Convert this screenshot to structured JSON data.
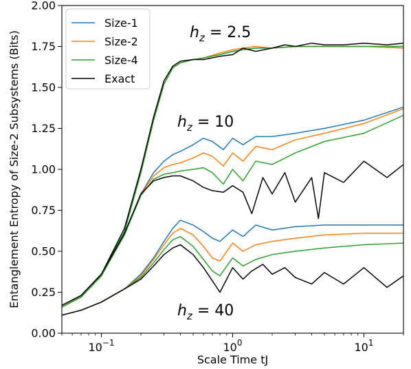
{
  "chart_data": {
    "type": "line",
    "title": "",
    "xlabel": "Scale Time tJ",
    "ylabel": "Entanglement Entropy of Size-2 Subsystems (Bits)",
    "xscale": "log",
    "xlim": [
      0.05,
      20
    ],
    "ylim": [
      0.0,
      2.0
    ],
    "grid": false,
    "legend_position": "top-left",
    "xticks": [
      {
        "value": 0.1,
        "base": "10",
        "exp": "−1"
      },
      {
        "value": 1,
        "base": "10",
        "exp": "0"
      },
      {
        "value": 10,
        "base": "10",
        "exp": "1"
      }
    ],
    "yticks": [
      "0.00",
      "0.25",
      "0.50",
      "0.75",
      "1.00",
      "1.25",
      "1.50",
      "1.75",
      "2.00"
    ],
    "series_styles": [
      {
        "name": "Size-1",
        "color": "#1f77b4"
      },
      {
        "name": "Size-2",
        "color": "#ff7f0e"
      },
      {
        "name": "Size-4",
        "color": "#2ca02c"
      },
      {
        "name": "Exact",
        "color": "#000000"
      }
    ],
    "groups": [
      {
        "annotation": {
          "var": "h",
          "sub": "z",
          "rest": " = 2.5"
        },
        "series": [
          {
            "name": "Size-1",
            "x": [
              0.05,
              0.07,
              0.1,
              0.15,
              0.2,
              0.25,
              0.3,
              0.35,
              0.4,
              0.5,
              0.6,
              0.8,
              1.0,
              1.2,
              1.5,
              2.0,
              3.0,
              5.0,
              10,
              20
            ],
            "y": [
              0.16,
              0.22,
              0.35,
              0.62,
              0.98,
              1.3,
              1.52,
              1.62,
              1.65,
              1.67,
              1.68,
              1.7,
              1.72,
              1.73,
              1.74,
              1.74,
              1.75,
              1.75,
              1.75,
              1.75
            ]
          },
          {
            "name": "Size-2",
            "x": [
              0.05,
              0.07,
              0.1,
              0.15,
              0.2,
              0.25,
              0.3,
              0.35,
              0.4,
              0.5,
              0.6,
              0.8,
              1.0,
              1.2,
              1.5,
              2.0,
              3.0,
              5.0,
              10,
              20
            ],
            "y": [
              0.16,
              0.22,
              0.35,
              0.62,
              0.98,
              1.3,
              1.52,
              1.62,
              1.65,
              1.67,
              1.68,
              1.71,
              1.73,
              1.74,
              1.75,
              1.74,
              1.75,
              1.75,
              1.75,
              1.74
            ]
          },
          {
            "name": "Size-4",
            "x": [
              0.05,
              0.07,
              0.1,
              0.15,
              0.2,
              0.25,
              0.3,
              0.35,
              0.4,
              0.5,
              0.6,
              0.8,
              1.0,
              1.2,
              1.5,
              2.0,
              3.0,
              5.0,
              10,
              20
            ],
            "y": [
              0.16,
              0.22,
              0.35,
              0.62,
              0.98,
              1.3,
              1.52,
              1.62,
              1.65,
              1.67,
              1.68,
              1.7,
              1.72,
              1.73,
              1.74,
              1.74,
              1.75,
              1.75,
              1.75,
              1.75
            ]
          },
          {
            "name": "Exact",
            "x": [
              0.05,
              0.07,
              0.1,
              0.15,
              0.2,
              0.25,
              0.3,
              0.35,
              0.4,
              0.5,
              0.6,
              0.8,
              1.0,
              1.2,
              1.5,
              2.0,
              2.5,
              3.0,
              4.0,
              5.0,
              7.0,
              10,
              15,
              20
            ],
            "y": [
              0.17,
              0.23,
              0.36,
              0.64,
              1.0,
              1.32,
              1.54,
              1.63,
              1.66,
              1.67,
              1.67,
              1.69,
              1.7,
              1.74,
              1.72,
              1.74,
              1.76,
              1.75,
              1.77,
              1.76,
              1.76,
              1.77,
              1.76,
              1.77
            ]
          }
        ]
      },
      {
        "annotation": {
          "var": "h",
          "sub": "z",
          "rest": " = 10"
        },
        "series": [
          {
            "name": "Size-1",
            "x": [
              0.05,
              0.07,
              0.1,
              0.15,
              0.2,
              0.25,
              0.3,
              0.35,
              0.4,
              0.5,
              0.6,
              0.7,
              0.85,
              1.0,
              1.2,
              1.5,
              2.0,
              3.0,
              5.0,
              10,
              20
            ],
            "y": [
              0.16,
              0.22,
              0.35,
              0.6,
              0.85,
              0.98,
              1.05,
              1.09,
              1.11,
              1.15,
              1.19,
              1.17,
              1.12,
              1.19,
              1.15,
              1.2,
              1.2,
              1.22,
              1.25,
              1.3,
              1.38
            ]
          },
          {
            "name": "Size-2",
            "x": [
              0.05,
              0.07,
              0.1,
              0.15,
              0.2,
              0.25,
              0.3,
              0.35,
              0.4,
              0.5,
              0.6,
              0.7,
              0.85,
              1.0,
              1.2,
              1.5,
              2.0,
              3.0,
              5.0,
              10,
              20
            ],
            "y": [
              0.16,
              0.22,
              0.35,
              0.6,
              0.85,
              0.96,
              1.01,
              1.03,
              1.04,
              1.07,
              1.1,
              1.08,
              1.02,
              1.1,
              1.05,
              1.14,
              1.12,
              1.18,
              1.22,
              1.28,
              1.37
            ]
          },
          {
            "name": "Size-4",
            "x": [
              0.05,
              0.07,
              0.1,
              0.15,
              0.2,
              0.25,
              0.3,
              0.35,
              0.4,
              0.5,
              0.6,
              0.7,
              0.85,
              1.0,
              1.2,
              1.5,
              2.0,
              3.0,
              5.0,
              10,
              20
            ],
            "y": [
              0.16,
              0.22,
              0.35,
              0.6,
              0.84,
              0.94,
              0.97,
              0.98,
              0.99,
              1.0,
              1.01,
              0.98,
              0.91,
              1.0,
              0.93,
              1.05,
              1.03,
              1.1,
              1.17,
              1.22,
              1.33
            ]
          },
          {
            "name": "Exact",
            "x": [
              0.05,
              0.07,
              0.1,
              0.15,
              0.2,
              0.25,
              0.3,
              0.35,
              0.4,
              0.5,
              0.6,
              0.7,
              0.85,
              1.0,
              1.2,
              1.4,
              1.7,
              2.0,
              2.5,
              3.0,
              4.0,
              4.5,
              5.0,
              7.0,
              10,
              15,
              20
            ],
            "y": [
              0.17,
              0.23,
              0.36,
              0.61,
              0.85,
              0.93,
              0.95,
              0.96,
              0.96,
              0.93,
              0.89,
              0.87,
              0.86,
              0.9,
              0.86,
              0.73,
              0.95,
              0.85,
              0.98,
              0.8,
              0.95,
              0.7,
              0.98,
              0.92,
              1.05,
              0.95,
              1.03
            ]
          }
        ]
      },
      {
        "annotation": {
          "var": "h",
          "sub": "z",
          "rest": " = 40"
        },
        "series": [
          {
            "name": "Size-1",
            "x": [
              0.05,
              0.07,
              0.1,
              0.15,
              0.2,
              0.25,
              0.3,
              0.35,
              0.4,
              0.5,
              0.6,
              0.7,
              0.8,
              1.0,
              1.2,
              1.5,
              2.0,
              3.0,
              5.0,
              10,
              20
            ],
            "y": [
              0.11,
              0.14,
              0.19,
              0.27,
              0.36,
              0.46,
              0.56,
              0.64,
              0.69,
              0.66,
              0.62,
              0.58,
              0.56,
              0.63,
              0.59,
              0.66,
              0.63,
              0.65,
              0.66,
              0.66,
              0.66
            ]
          },
          {
            "name": "Size-2",
            "x": [
              0.05,
              0.07,
              0.1,
              0.15,
              0.2,
              0.25,
              0.3,
              0.35,
              0.4,
              0.5,
              0.6,
              0.7,
              0.8,
              1.0,
              1.2,
              1.5,
              2.0,
              3.0,
              5.0,
              10,
              20
            ],
            "y": [
              0.11,
              0.14,
              0.19,
              0.27,
              0.35,
              0.45,
              0.54,
              0.61,
              0.64,
              0.6,
              0.53,
              0.46,
              0.44,
              0.55,
              0.5,
              0.54,
              0.56,
              0.58,
              0.6,
              0.61,
              0.61
            ]
          },
          {
            "name": "Size-4",
            "x": [
              0.05,
              0.07,
              0.1,
              0.15,
              0.2,
              0.25,
              0.3,
              0.35,
              0.4,
              0.5,
              0.6,
              0.7,
              0.8,
              1.0,
              1.2,
              1.5,
              2.0,
              3.0,
              5.0,
              10,
              20
            ],
            "y": [
              0.11,
              0.14,
              0.19,
              0.27,
              0.34,
              0.43,
              0.51,
              0.57,
              0.59,
              0.53,
              0.45,
              0.38,
              0.35,
              0.46,
              0.41,
              0.45,
              0.48,
              0.5,
              0.52,
              0.54,
              0.55
            ]
          },
          {
            "name": "Exact",
            "x": [
              0.05,
              0.07,
              0.1,
              0.15,
              0.2,
              0.25,
              0.3,
              0.35,
              0.4,
              0.5,
              0.6,
              0.7,
              0.8,
              1.0,
              1.2,
              1.4,
              1.7,
              2.0,
              2.5,
              3.0,
              4.0,
              5.0,
              7.0,
              10,
              15,
              20
            ],
            "y": [
              0.11,
              0.14,
              0.19,
              0.27,
              0.33,
              0.41,
              0.48,
              0.52,
              0.54,
              0.48,
              0.4,
              0.32,
              0.25,
              0.4,
              0.33,
              0.38,
              0.42,
              0.36,
              0.4,
              0.34,
              0.3,
              0.37,
              0.3,
              0.4,
              0.28,
              0.35
            ]
          }
        ]
      }
    ]
  }
}
